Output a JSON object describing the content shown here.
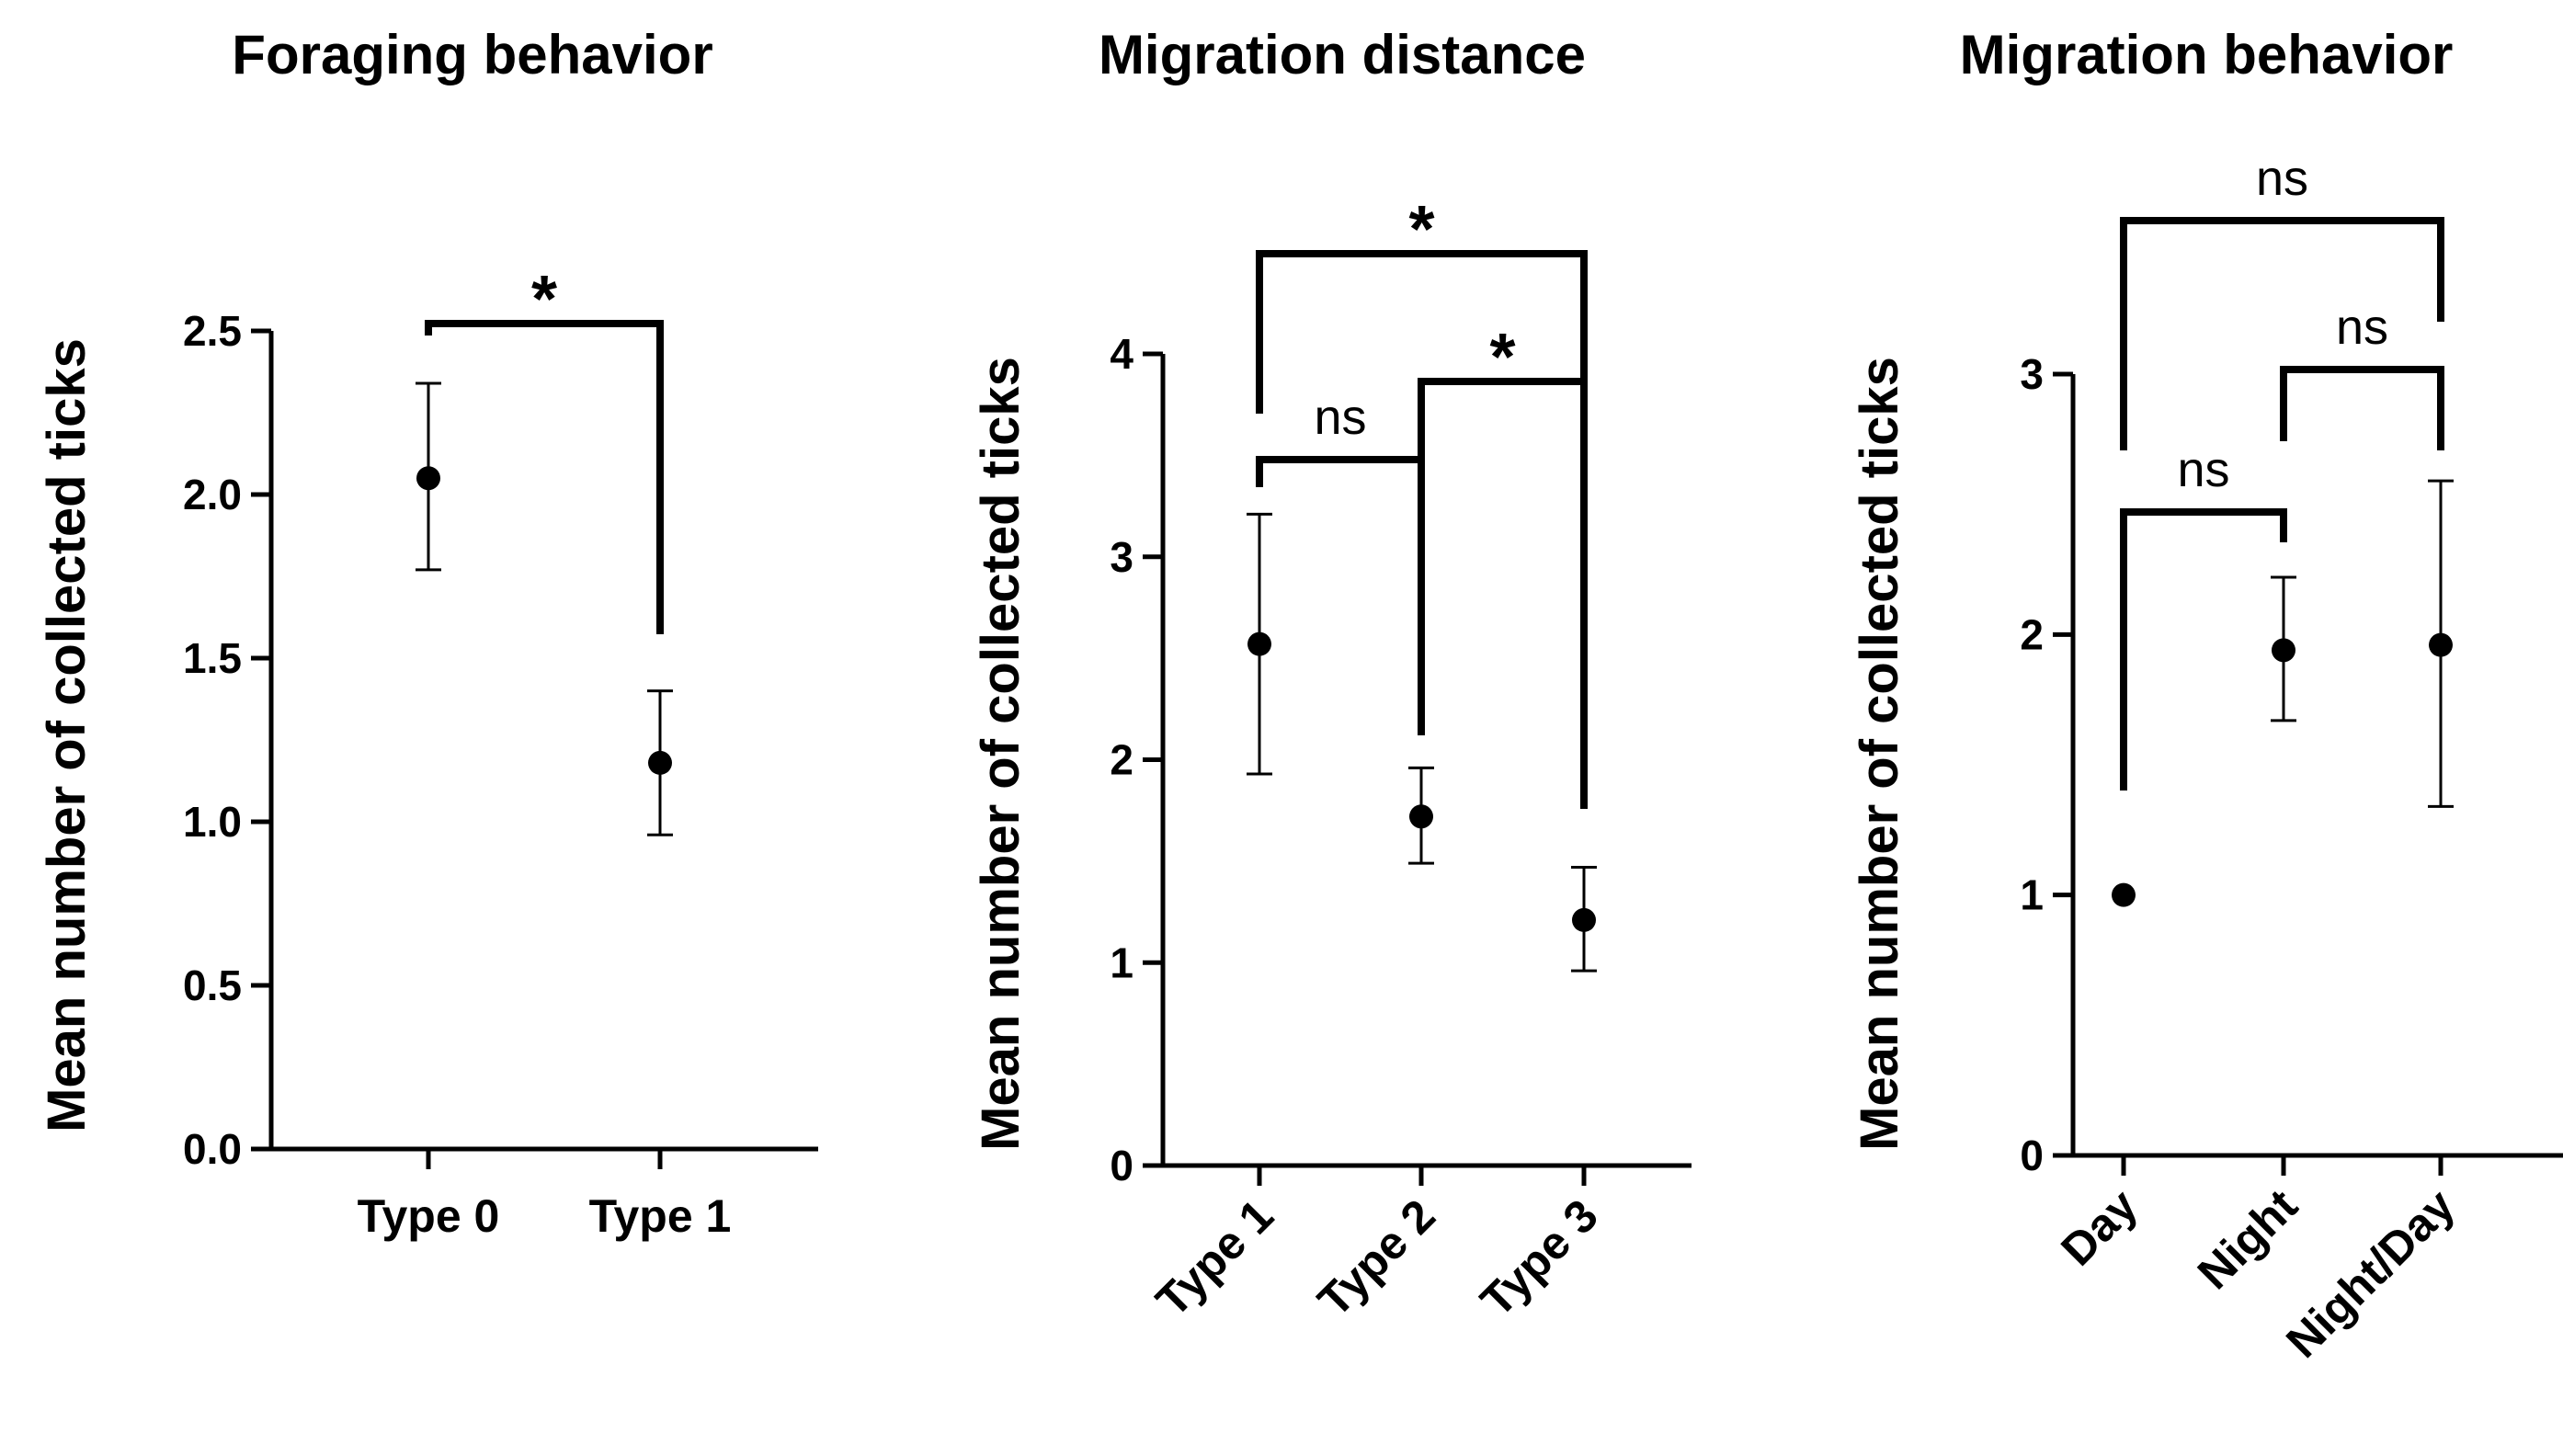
{
  "figure": {
    "panel_count": 3
  },
  "chart_data": [
    {
      "type": "scatter",
      "title": "Foraging behavior",
      "xlabel": "",
      "ylabel": "Mean number of collected ticks",
      "categories": [
        "Type 0",
        "Type 1"
      ],
      "values": [
        2.05,
        1.18
      ],
      "error_low": [
        1.77,
        0.96
      ],
      "error_high": [
        2.34,
        1.4
      ],
      "ylim": [
        0,
        2.5
      ],
      "yticks": [
        0.0,
        0.5,
        1.0,
        1.5,
        2.0,
        2.5
      ],
      "ytick_labels": [
        "0.0",
        "0.5",
        "1.0",
        "1.5",
        "2.0",
        "2.5"
      ],
      "xtick_rotation": 0,
      "grid": false,
      "comparisons": [
        {
          "from": "Type 0",
          "to": "Type 1",
          "label": "*"
        }
      ]
    },
    {
      "type": "scatter",
      "title": "Migration distance",
      "xlabel": "",
      "ylabel": "Mean number of collected ticks",
      "categories": [
        "Type 1",
        "Type 2",
        "Type 3"
      ],
      "values": [
        2.57,
        1.72,
        1.21
      ],
      "error_low": [
        1.93,
        1.49,
        0.96
      ],
      "error_high": [
        3.21,
        1.96,
        1.47
      ],
      "ylim": [
        0,
        4
      ],
      "yticks": [
        0,
        1,
        2,
        3,
        4
      ],
      "ytick_labels": [
        "0",
        "1",
        "2",
        "3",
        "4"
      ],
      "xtick_rotation": -45,
      "grid": false,
      "comparisons": [
        {
          "from": "Type 1",
          "to": "Type 2",
          "label": "ns"
        },
        {
          "from": "Type 2",
          "to": "Type 3",
          "label": "*"
        },
        {
          "from": "Type 1",
          "to": "Type 3",
          "label": "*"
        }
      ]
    },
    {
      "type": "scatter",
      "title": "Migration behavior",
      "xlabel": "",
      "ylabel": "Mean number of collected ticks",
      "categories": [
        "Day",
        "Night",
        "Night/Day"
      ],
      "values": [
        1.0,
        1.94,
        1.96
      ],
      "error_low": [
        1.0,
        1.67,
        1.34
      ],
      "error_high": [
        1.0,
        2.22,
        2.59
      ],
      "ylim": [
        0,
        3
      ],
      "yticks": [
        0,
        1,
        2,
        3
      ],
      "ytick_labels": [
        "0",
        "1",
        "2",
        "3"
      ],
      "xtick_rotation": -45,
      "grid": false,
      "comparisons": [
        {
          "from": "Day",
          "to": "Night",
          "label": "ns"
        },
        {
          "from": "Night",
          "to": "Night/Day",
          "label": "ns"
        },
        {
          "from": "Day",
          "to": "Night/Day",
          "label": "ns"
        }
      ]
    }
  ]
}
